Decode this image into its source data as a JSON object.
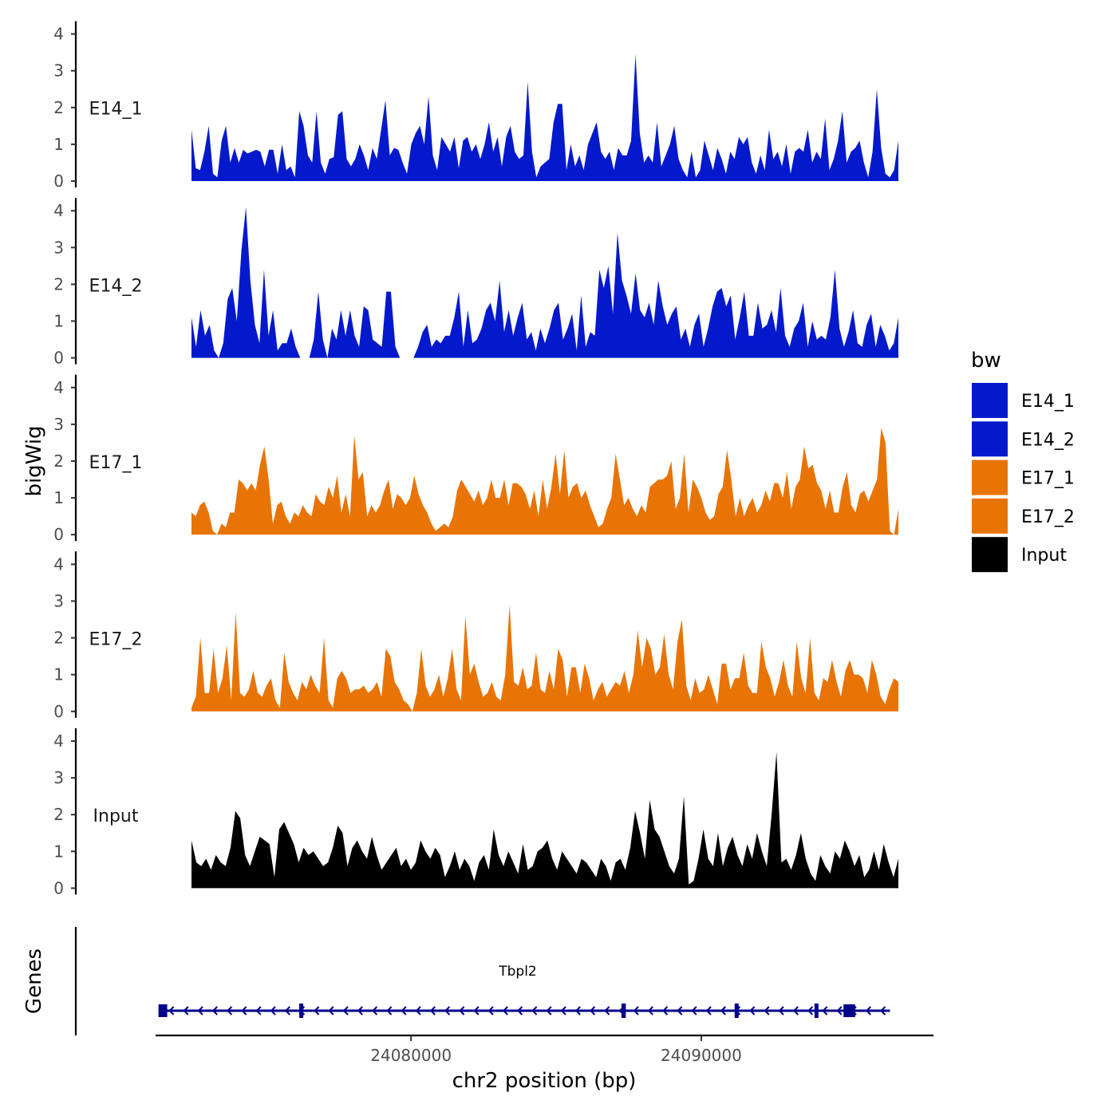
{
  "chart_data": {
    "type": "area",
    "title": "",
    "ylabel": "bigWig",
    "genes_label": "Genes",
    "xlabel": "chr2 position (bp)",
    "x_range": [
      24071200,
      24098000
    ],
    "x_ticks": [
      24080000,
      24090000
    ],
    "x_tick_labels": [
      "24080000",
      "24090000"
    ],
    "y_range": [
      0,
      4.3
    ],
    "y_ticks": [
      0,
      1,
      2,
      3,
      4
    ],
    "y_tick_labels": [
      "0",
      "1",
      "2",
      "3",
      "4"
    ],
    "legend_title": "bw",
    "series": [
      {
        "name": "E14_1",
        "color": "#0519CC",
        "values": [
          1.4,
          0.35,
          0.3,
          0.8,
          1.5,
          0.2,
          0.1,
          1.1,
          1.5,
          0.5,
          0.9,
          0.5,
          0.85,
          0.75,
          0.8,
          0.85,
          0.8,
          0.4,
          0.85,
          0.85,
          0.2,
          1.0,
          0.3,
          0.4,
          0.1,
          1.9,
          1.5,
          0.7,
          0.5,
          1.9,
          0.5,
          0.2,
          0.6,
          0.65,
          1.8,
          1.9,
          0.6,
          0.4,
          0.6,
          1.0,
          0.7,
          0.3,
          0.9,
          0.6,
          1.4,
          2.2,
          0.7,
          0.9,
          0.85,
          0.5,
          0.2,
          1.0,
          1.3,
          1.5,
          1.0,
          2.3,
          0.7,
          0.3,
          1.2,
          1.0,
          0.8,
          1.2,
          0.35,
          1.1,
          1.2,
          0.8,
          1.0,
          0.6,
          1.0,
          1.6,
          0.8,
          1.2,
          0.4,
          1.2,
          1.5,
          0.8,
          0.6,
          0.7,
          2.7,
          0.8,
          0.1,
          0.4,
          0.5,
          0.6,
          1.6,
          2.1,
          2.1,
          0.3,
          1.0,
          0.4,
          0.7,
          0.3,
          1.0,
          1.3,
          1.6,
          0.8,
          0.6,
          0.8,
          0.3,
          0.9,
          0.7,
          0.7,
          1.1,
          3.45,
          1.3,
          0.5,
          0.7,
          0.5,
          1.6,
          0.4,
          0.7,
          1.0,
          1.5,
          0.6,
          0.3,
          0.1,
          0.8,
          0.1,
          0.3,
          1.1,
          0.7,
          0.3,
          0.9,
          0.6,
          0.2,
          0.8,
          0.6,
          1.2,
          1.0,
          1.2,
          0.5,
          0.2,
          0.7,
          0.3,
          1.4,
          0.6,
          0.8,
          0.4,
          1.0,
          0.2,
          0.8,
          0.9,
          0.8,
          1.4,
          0.5,
          0.8,
          0.6,
          1.7,
          0.3,
          0.6,
          1.1,
          1.9,
          0.5,
          0.8,
          0.9,
          1.1,
          0.5,
          0.1,
          0.8,
          2.5,
          0.9,
          0.2,
          0.1,
          0.3,
          1.1
        ],
        "label_value": "E14_1"
      },
      {
        "name": "E14_2",
        "color": "#0519CC",
        "values": [
          1.1,
          0.3,
          1.3,
          0.6,
          0.9,
          0.2,
          0.0,
          0.4,
          1.6,
          1.9,
          1.0,
          2.9,
          4.1,
          2.1,
          0.9,
          0.4,
          2.4,
          0.6,
          1.3,
          0.2,
          0.4,
          0.4,
          0.8,
          0.3,
          0.0,
          0.0,
          0.0,
          0.5,
          1.8,
          0.5,
          0.0,
          0.8,
          0.5,
          1.3,
          0.6,
          1.3,
          0.6,
          0.3,
          1.4,
          1.3,
          0.5,
          0.4,
          0.3,
          1.8,
          1.8,
          0.3,
          0.0,
          0.0,
          0.0,
          0.0,
          0.3,
          0.7,
          0.9,
          0.3,
          0.5,
          0.4,
          0.6,
          0.6,
          1.1,
          1.8,
          0.3,
          1.3,
          0.4,
          0.5,
          0.8,
          1.3,
          1.5,
          1.0,
          2.1,
          0.7,
          1.3,
          0.6,
          1.1,
          1.5,
          0.5,
          0.7,
          0.2,
          0.8,
          0.4,
          0.8,
          1.3,
          1.5,
          0.5,
          0.8,
          1.2,
          0.2,
          1.7,
          0.3,
          0.7,
          0.6,
          2.4,
          1.9,
          2.5,
          1.2,
          3.4,
          2.1,
          1.7,
          1.2,
          2.3,
          1.3,
          1.1,
          1.5,
          0.9,
          2.1,
          1.4,
          0.9,
          1.2,
          1.4,
          0.5,
          0.8,
          0.3,
          0.9,
          1.2,
          0.3,
          0.8,
          1.4,
          1.8,
          1.9,
          1.4,
          1.7,
          0.5,
          1.1,
          1.8,
          0.6,
          0.6,
          1.5,
          0.8,
          0.9,
          1.3,
          0.7,
          1.9,
          0.6,
          0.3,
          0.8,
          1.0,
          1.5,
          0.3,
          1.0,
          0.5,
          0.6,
          0.5,
          1.1,
          2.4,
          0.8,
          0.3,
          0.7,
          1.3,
          0.4,
          0.3,
          0.9,
          1.2,
          0.3,
          0.9,
          0.6,
          0.2,
          0.4,
          1.1
        ],
        "label_value": "E14_2"
      },
      {
        "name": "E17_1",
        "color": "#E87406",
        "values": [
          0.6,
          0.5,
          0.8,
          0.9,
          0.6,
          0.1,
          0.0,
          0.3,
          0.2,
          0.6,
          0.6,
          1.5,
          1.4,
          1.2,
          1.4,
          1.2,
          1.9,
          2.4,
          1.5,
          0.3,
          0.8,
          0.9,
          0.5,
          0.3,
          0.6,
          0.5,
          0.8,
          0.6,
          0.5,
          1.1,
          0.9,
          0.8,
          1.3,
          1.0,
          1.6,
          0.6,
          1.1,
          0.5,
          2.7,
          1.5,
          1.7,
          0.5,
          0.8,
          0.6,
          0.8,
          1.2,
          1.5,
          0.7,
          1.1,
          1.0,
          0.8,
          1.0,
          1.6,
          1.1,
          0.8,
          0.6,
          0.3,
          0.1,
          0.2,
          0.3,
          0.2,
          0.5,
          1.2,
          1.5,
          1.3,
          1.1,
          0.9,
          1.2,
          0.8,
          1.0,
          1.5,
          1.0,
          1.0,
          1.5,
          0.8,
          1.4,
          1.4,
          1.3,
          1.1,
          0.7,
          1.2,
          0.5,
          1.5,
          0.7,
          1.3,
          2.2,
          1.1,
          2.3,
          1.0,
          1.3,
          1.4,
          1.0,
          1.2,
          0.8,
          0.5,
          0.2,
          0.3,
          0.7,
          1.0,
          2.2,
          1.5,
          0.8,
          1.0,
          0.7,
          0.5,
          0.8,
          0.6,
          1.3,
          1.4,
          1.5,
          1.5,
          1.6,
          2.0,
          0.7,
          1.0,
          2.2,
          0.6,
          1.5,
          1.3,
          1.0,
          0.6,
          0.4,
          0.5,
          1.1,
          1.3,
          2.3,
          1.5,
          0.5,
          1.0,
          0.5,
          0.8,
          1.0,
          0.6,
          0.8,
          1.2,
          0.9,
          1.4,
          1.4,
          1.0,
          1.7,
          0.7,
          1.3,
          1.5,
          2.4,
          1.8,
          1.9,
          1.4,
          1.2,
          0.7,
          1.2,
          0.6,
          0.6,
          1.3,
          1.7,
          0.8,
          0.6,
          1.1,
          1.2,
          0.9,
          1.2,
          1.5,
          2.9,
          2.5,
          0.1,
          0.0,
          0.7
        ],
        "label_value": "E17_1"
      },
      {
        "name": "E17_2",
        "color": "#E87406",
        "values": [
          0.1,
          0.4,
          2.0,
          0.5,
          0.5,
          1.7,
          0.5,
          0.9,
          1.8,
          0.3,
          2.7,
          0.5,
          0.4,
          0.6,
          1.1,
          0.5,
          0.4,
          0.7,
          0.9,
          0.3,
          0.1,
          1.6,
          0.8,
          0.5,
          0.3,
          0.8,
          0.6,
          1.0,
          0.7,
          0.5,
          2.0,
          0.3,
          0.1,
          0.9,
          1.1,
          0.9,
          0.5,
          0.6,
          0.6,
          0.7,
          0.5,
          0.6,
          0.8,
          0.4,
          1.7,
          1.5,
          0.8,
          0.6,
          0.3,
          0.2,
          0.0,
          0.5,
          1.7,
          0.7,
          0.4,
          0.6,
          1.0,
          0.4,
          0.9,
          1.7,
          0.6,
          0.3,
          2.6,
          1.0,
          1.3,
          0.8,
          0.4,
          0.5,
          0.8,
          0.4,
          0.3,
          1.0,
          2.9,
          0.8,
          0.7,
          1.2,
          0.6,
          0.7,
          1.6,
          0.6,
          0.5,
          1.1,
          0.6,
          1.7,
          1.4,
          0.4,
          1.2,
          1.2,
          0.5,
          1.3,
          0.9,
          0.3,
          0.6,
          0.8,
          0.4,
          0.6,
          0.8,
          0.7,
          1.1,
          0.5,
          1.0,
          2.2,
          1.2,
          2.0,
          1.7,
          1.0,
          1.2,
          2.1,
          1.0,
          0.6,
          1.9,
          2.5,
          0.7,
          0.3,
          0.9,
          0.5,
          0.6,
          1.0,
          0.6,
          0.2,
          1.3,
          1.3,
          0.6,
          0.9,
          0.9,
          1.6,
          0.7,
          0.5,
          0.5,
          1.9,
          1.2,
          0.9,
          0.4,
          0.8,
          1.4,
          0.7,
          0.4,
          1.9,
          0.9,
          0.5,
          2.0,
          0.5,
          0.3,
          0.9,
          0.8,
          1.4,
          0.8,
          0.4,
          1.1,
          1.4,
          1.0,
          1.0,
          0.9,
          0.5,
          1.4,
          1.0,
          0.4,
          0.2,
          0.6,
          0.9,
          0.8
        ],
        "label_value": "E17_2"
      },
      {
        "name": "Input",
        "color": "#000000",
        "values": [
          1.3,
          0.7,
          0.6,
          0.8,
          0.5,
          0.9,
          0.7,
          0.6,
          1.1,
          2.1,
          1.9,
          0.9,
          0.6,
          1.0,
          1.4,
          1.3,
          1.2,
          0.3,
          1.6,
          1.8,
          1.5,
          1.2,
          0.7,
          1.1,
          0.9,
          1.0,
          0.8,
          0.6,
          0.7,
          1.1,
          1.7,
          1.5,
          0.6,
          1.1,
          1.3,
          1.0,
          0.8,
          1.4,
          0.9,
          0.5,
          0.7,
          0.9,
          1.1,
          0.6,
          0.8,
          0.5,
          0.7,
          1.3,
          1.0,
          0.8,
          1.1,
          0.9,
          0.3,
          0.6,
          1.0,
          0.5,
          0.8,
          0.6,
          0.2,
          0.7,
          0.9,
          0.5,
          1.6,
          0.9,
          0.6,
          1.0,
          0.7,
          0.4,
          1.2,
          0.5,
          0.6,
          1.0,
          1.1,
          1.3,
          0.8,
          0.5,
          1.0,
          0.8,
          0.6,
          0.4,
          0.8,
          0.7,
          0.5,
          0.3,
          0.8,
          0.6,
          0.2,
          0.7,
          0.8,
          0.5,
          1.1,
          2.1,
          1.5,
          0.8,
          2.4,
          1.6,
          1.4,
          1.0,
          0.6,
          0.4,
          0.8,
          2.5,
          0.1,
          0.2,
          0.8,
          1.6,
          0.8,
          0.6,
          1.5,
          0.6,
          1.1,
          1.4,
          0.9,
          0.6,
          1.2,
          0.8,
          1.5,
          1.0,
          0.6,
          2.0,
          3.7,
          0.7,
          0.8,
          0.5,
          0.9,
          1.5,
          0.8,
          0.4,
          0.2,
          0.9,
          0.6,
          0.4,
          1.0,
          0.8,
          1.3,
          1.0,
          0.6,
          0.9,
          0.3,
          0.5,
          1.0,
          0.5,
          1.2,
          0.7,
          0.3,
          0.8
        ],
        "label_value": "Input"
      }
    ],
    "gene": {
      "name": "Tbpl2",
      "strand": "-",
      "start": 24071300,
      "end": 24096500,
      "exons": [
        [
          24071300,
          24071600
        ],
        [
          24076150,
          24076250
        ],
        [
          24087250,
          24087400
        ],
        [
          24091150,
          24091250
        ],
        [
          24093900,
          24094000
        ],
        [
          24094900,
          24095300
        ]
      ],
      "color": "#00008B"
    }
  }
}
